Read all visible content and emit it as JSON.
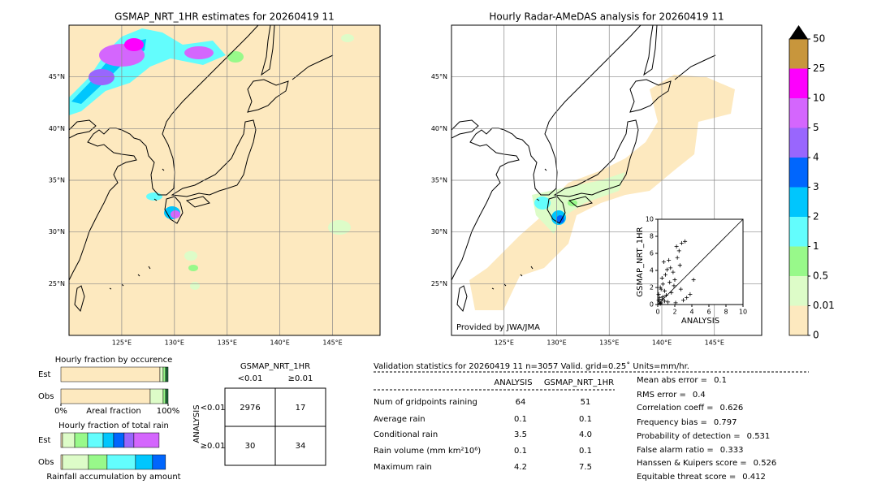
{
  "chart_data": [
    {
      "type": "map",
      "title": "GSMAP_NRT_1HR estimates for 20260419 11",
      "xlim": [
        120,
        149.5
      ],
      "ylim": [
        20,
        50
      ],
      "xticks": [
        {
          "value": 125,
          "label": "125°E"
        },
        {
          "value": 130,
          "label": "130°E"
        },
        {
          "value": 135,
          "label": "135°E"
        },
        {
          "value": 140,
          "label": "140°E"
        },
        {
          "value": 145,
          "label": "145°E"
        }
      ],
      "yticks": [
        {
          "value": 25,
          "label": "25°N"
        },
        {
          "value": 30,
          "label": "30°N"
        },
        {
          "value": 35,
          "label": "35°N"
        },
        {
          "value": 40,
          "label": "40°N"
        },
        {
          "value": 45,
          "label": "45°N"
        }
      ],
      "grid": true
    },
    {
      "type": "map",
      "title": "Hourly Radar-AMeDAS analysis for 20260419 11",
      "annotation": "Provided by JWA/JMA",
      "xlim": [
        120,
        149.5
      ],
      "ylim": [
        20,
        50
      ],
      "xticks": [
        {
          "value": 125,
          "label": "125°E"
        },
        {
          "value": 130,
          "label": "130°E"
        },
        {
          "value": 135,
          "label": "135°E"
        },
        {
          "value": 140,
          "label": "140°E"
        },
        {
          "value": 145,
          "label": "145°E"
        }
      ],
      "yticks": [
        {
          "value": 25,
          "label": "25°N"
        },
        {
          "value": 30,
          "label": "30°N"
        },
        {
          "value": 35,
          "label": "35°N"
        },
        {
          "value": 40,
          "label": "40°N"
        },
        {
          "value": 45,
          "label": "45°N"
        }
      ],
      "grid": true
    },
    {
      "type": "colorbar",
      "levels": [
        0,
        0.01,
        0.5,
        1,
        2,
        3,
        4,
        5,
        10,
        25,
        50
      ],
      "colors": [
        "#fde9bf",
        "#ddfcc8",
        "#98f98a",
        "#63fdfd",
        "#00c6fd",
        "#0066fd",
        "#9966fd",
        "#d466fd",
        "#fd00fd",
        "#c8963c"
      ],
      "extend_color": "#000000"
    },
    {
      "type": "scatter",
      "xlabel": "ANALYSIS",
      "ylabel": "GSMAP_NRT_1HR",
      "xlim": [
        0,
        10
      ],
      "ylim": [
        0,
        10
      ],
      "xticks": [
        0,
        2,
        4,
        6,
        8,
        10
      ],
      "yticks": [
        0,
        2,
        4,
        6,
        8,
        10
      ],
      "color": "#000000",
      "diagonal": true,
      "x": [
        0.2,
        0.3,
        0.5,
        0.1,
        0.4,
        0.6,
        0.8,
        1.0,
        1.2,
        0.5,
        0.9,
        1.1,
        1.3,
        0.7,
        1.5,
        2.0,
        2.3,
        2.5,
        2.2,
        2.8,
        3.2,
        2.6,
        1.8,
        3.0,
        3.4,
        2.1,
        1.6,
        4.2,
        2.7,
        1.9,
        0.3,
        0.2,
        0.4,
        3.8,
        0.6,
        0.1,
        1.4,
        0.8
      ],
      "values": [
        0.3,
        0.1,
        0.6,
        1.2,
        1.8,
        2.4,
        0.4,
        1.1,
        0.3,
        3.1,
        3.5,
        4.1,
        5.2,
        5.0,
        4.3,
        2.9,
        5.5,
        6.3,
        6.8,
        7.2,
        7.4,
        4.6,
        3.8,
        0.5,
        0.8,
        0.2,
        1.4,
        2.9,
        1.8,
        2.2,
        2.0,
        0.8,
        0.2,
        1.2,
        0.9,
        0.5,
        2.6,
        1.6
      ]
    },
    {
      "type": "stacked_barh",
      "title": "Hourly fraction by occurence",
      "xlabel": "Areal fraction",
      "categories": [
        "Est",
        "Obs"
      ],
      "xlim": [
        0,
        100
      ],
      "xticks": [
        {
          "value": 0,
          "label": "0%"
        },
        {
          "value": 100,
          "label": "100%"
        }
      ],
      "series": [
        {
          "color": "#fde9bf",
          "values": [
            92.4,
            83.3
          ]
        },
        {
          "color": "#ddfcc8",
          "values": [
            3.0,
            12.1
          ]
        },
        {
          "color": "#98f98a",
          "values": [
            2.3,
            2.3
          ]
        },
        {
          "color": "#1f6b3a",
          "values": [
            2.3,
            2.3
          ]
        }
      ]
    },
    {
      "type": "stacked_barh",
      "title": "Hourly fraction of total rain",
      "xlabel": "Rainfall accumulation by amount",
      "categories": [
        "Est",
        "Obs"
      ],
      "xlim": [
        0,
        100
      ],
      "series": [
        {
          "color": "#fde9bf",
          "values": [
            1.5,
            1.5
          ]
        },
        {
          "color": "#ddfcc8",
          "values": [
            11.4,
            24.2
          ]
        },
        {
          "color": "#98f98a",
          "values": [
            12.1,
            17.4
          ]
        },
        {
          "color": "#63fdfd",
          "values": [
            14.4,
            26.5
          ]
        },
        {
          "color": "#00c6fd",
          "values": [
            9.8,
            15.9
          ]
        },
        {
          "color": "#0066fd",
          "values": [
            9.8,
            12.1
          ]
        },
        {
          "color": "#9966fd",
          "values": [
            9.1,
            0
          ]
        },
        {
          "color": "#d466fd",
          "values": [
            23.5,
            0
          ]
        }
      ]
    }
  ],
  "contingency": {
    "title": "GSMAP_NRT_1HR",
    "columns": [
      "<0.01",
      "≥0.01"
    ],
    "row_title": "ANALYSIS",
    "rows": [
      "<0.01",
      "≥0.01"
    ],
    "cells": [
      [
        2976,
        17
      ],
      [
        30,
        34
      ]
    ]
  },
  "validation": {
    "title": "Validation statistics for 20260419 11  n=3057 Valid. grid=0.25˚ Units=mm/hr.",
    "columns": [
      "ANALYSIS",
      "GSMAP_NRT_1HR"
    ],
    "rows": [
      {
        "label": "Num of gridpoints raining",
        "values": [
          "64",
          "51"
        ]
      },
      {
        "label": "Average rain",
        "values": [
          "0.1",
          "0.1"
        ]
      },
      {
        "label": "Conditional rain",
        "values": [
          "3.5",
          "4.0"
        ]
      },
      {
        "label": "Rain volume (mm km²10⁶)",
        "values": [
          "0.1",
          "0.1"
        ]
      },
      {
        "label": "Maximum rain",
        "values": [
          "4.2",
          "7.5"
        ]
      }
    ],
    "scores": [
      {
        "label": "Mean abs error =",
        "value": "0.1"
      },
      {
        "label": "RMS error =",
        "value": "0.4"
      },
      {
        "label": "Correlation coeff =",
        "value": "0.626"
      },
      {
        "label": "Frequency bias =",
        "value": "0.797"
      },
      {
        "label": "Probability of detection =",
        "value": "0.531"
      },
      {
        "label": "False alarm ratio =",
        "value": "0.333"
      },
      {
        "label": "Hanssen & Kuipers score =",
        "value": "0.526"
      },
      {
        "label": "Equitable threat score =",
        "value": "0.412"
      }
    ]
  }
}
